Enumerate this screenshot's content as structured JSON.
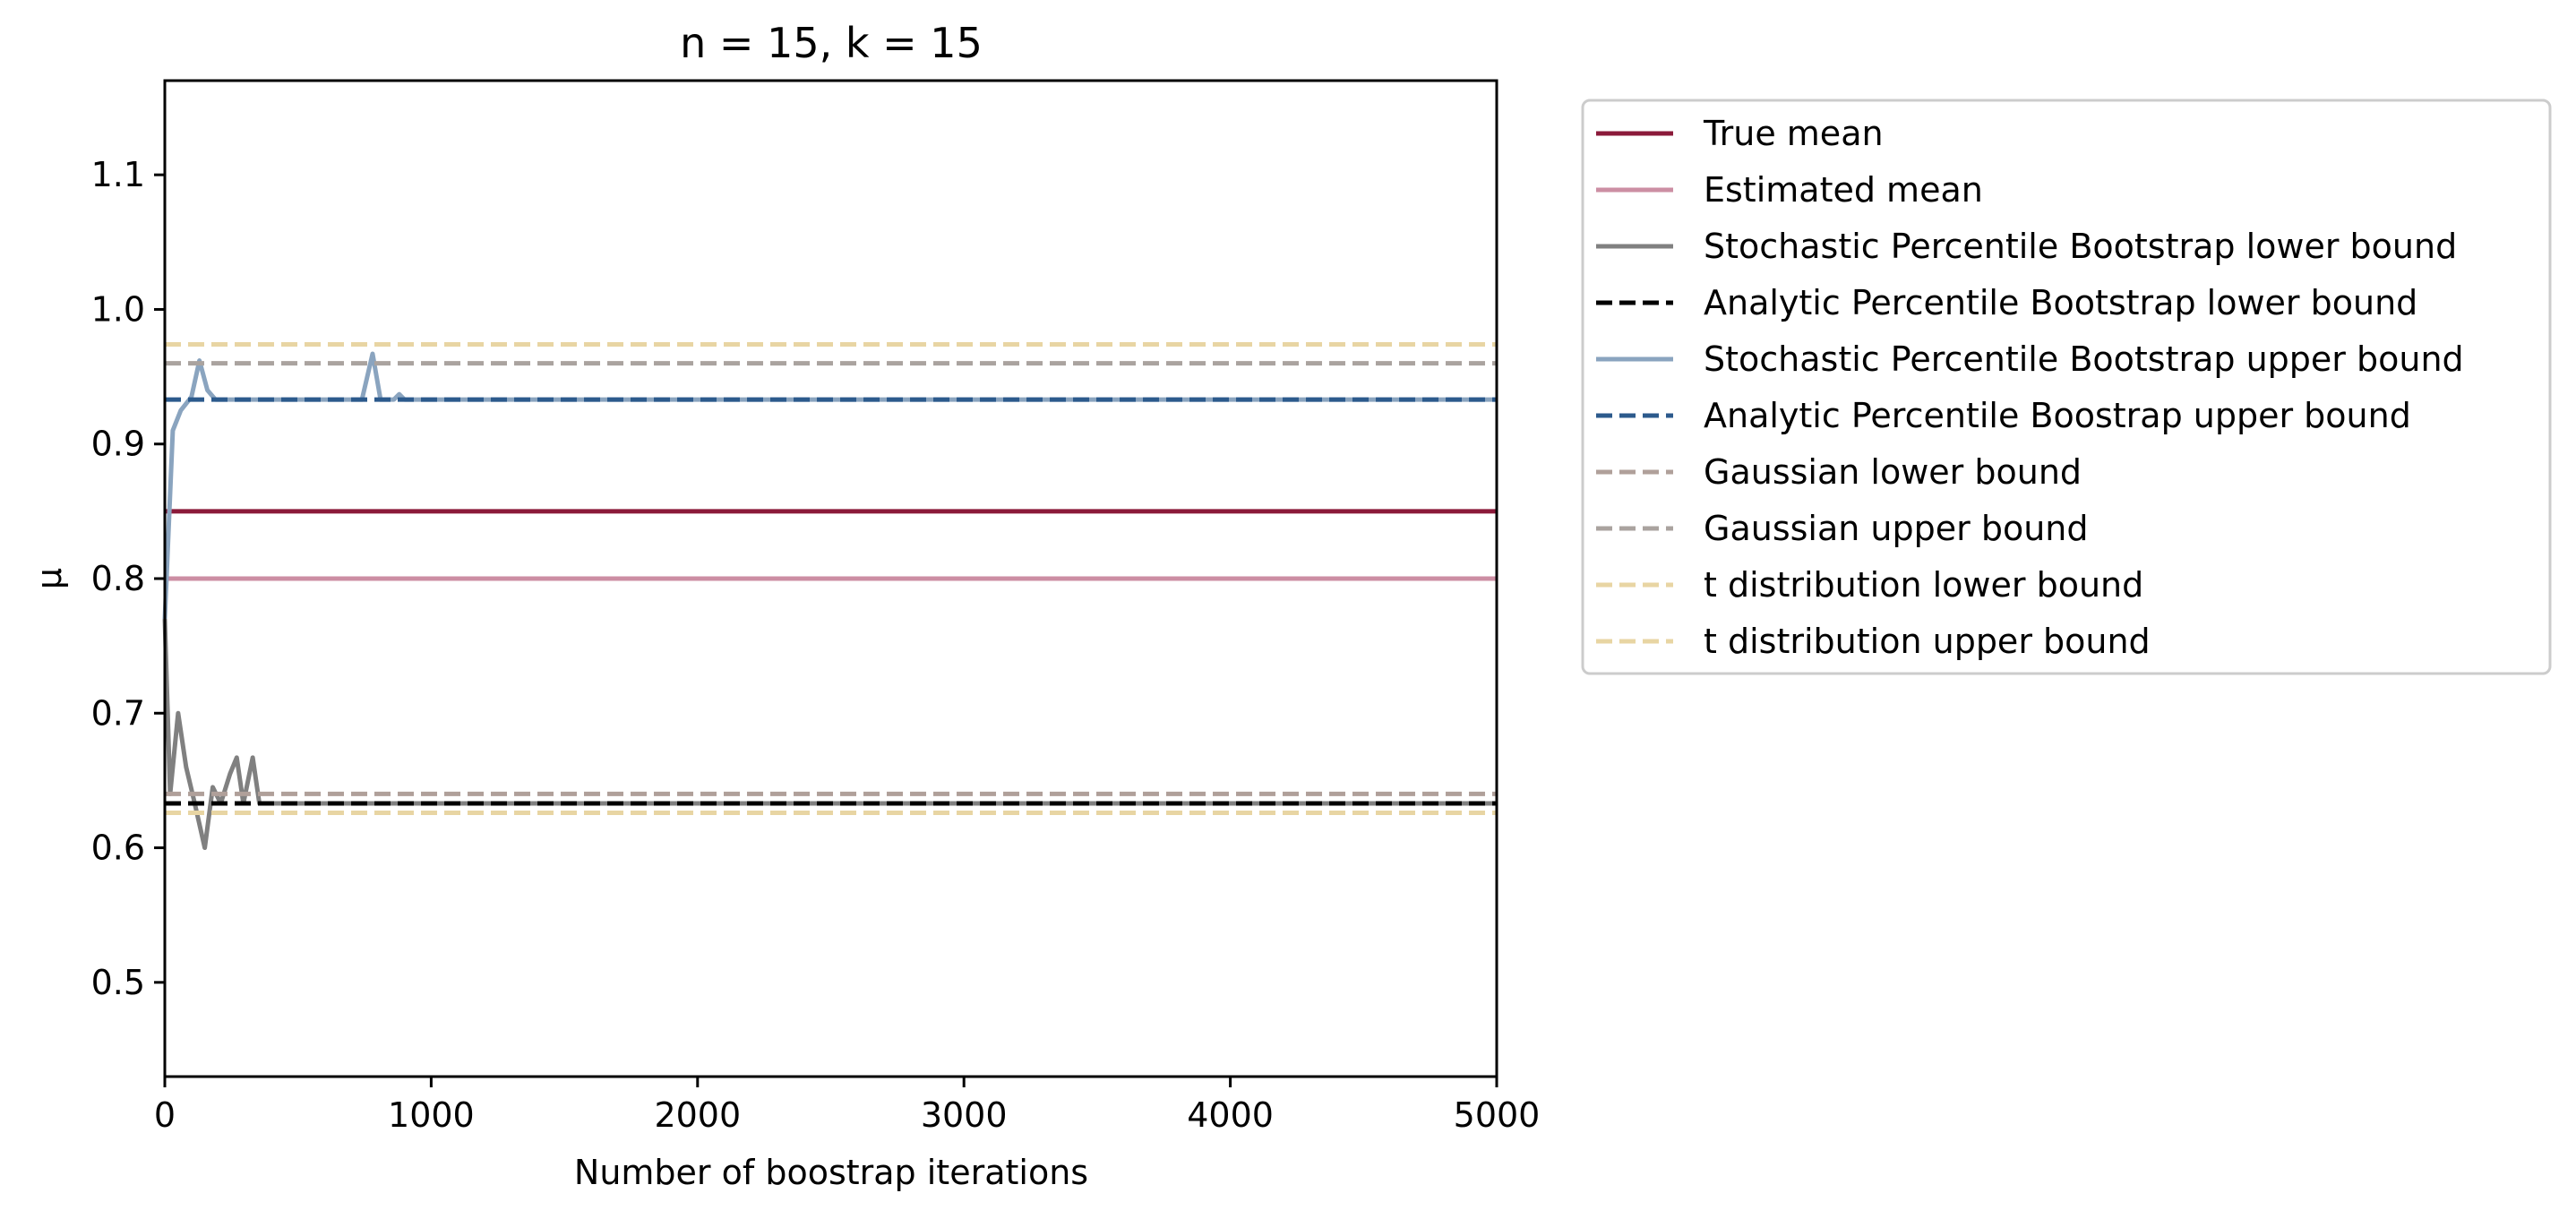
{
  "chart_data": {
    "type": "line",
    "title": "n = 15, k = 15",
    "xlabel": "Number of boostrap iterations",
    "ylabel": "μ",
    "xlim": [
      0,
      5000
    ],
    "ylim": [
      0.43,
      1.17
    ],
    "x_ticks": [
      0,
      1000,
      2000,
      3000,
      4000,
      5000
    ],
    "y_ticks": [
      0.5,
      0.6,
      0.7,
      0.8,
      0.9,
      1.0,
      1.1
    ],
    "grid": false,
    "legend_position": "outside-right",
    "series": [
      {
        "name": "True mean",
        "color": "#8b1a3a",
        "dash": "solid",
        "points": [
          [
            0,
            0.85
          ],
          [
            5000,
            0.85
          ]
        ]
      },
      {
        "name": "Estimated mean",
        "color": "#cc8ea3",
        "dash": "solid",
        "points": [
          [
            0,
            0.8
          ],
          [
            5000,
            0.8
          ]
        ]
      },
      {
        "name": "Stochastic Percentile Bootstrap lower bound",
        "color": "#808080",
        "dash": "solid",
        "points": [
          [
            0,
            0.77
          ],
          [
            20,
            0.64
          ],
          [
            50,
            0.7
          ],
          [
            80,
            0.66
          ],
          [
            110,
            0.635
          ],
          [
            150,
            0.6
          ],
          [
            180,
            0.645
          ],
          [
            210,
            0.633
          ],
          [
            245,
            0.655
          ],
          [
            270,
            0.667
          ],
          [
            295,
            0.633
          ],
          [
            330,
            0.667
          ],
          [
            355,
            0.633
          ],
          [
            5000,
            0.633
          ]
        ]
      },
      {
        "name": "Analytic Percentile Bootstrap lower bound",
        "color": "#000000",
        "dash": "dashed",
        "points": [
          [
            0,
            0.633
          ],
          [
            5000,
            0.633
          ]
        ]
      },
      {
        "name": "Stochastic Percentile Bootstrap upper bound",
        "color": "#8aa4bf",
        "dash": "solid",
        "points": [
          [
            0,
            0.77
          ],
          [
            30,
            0.91
          ],
          [
            60,
            0.925
          ],
          [
            100,
            0.935
          ],
          [
            130,
            0.962
          ],
          [
            160,
            0.94
          ],
          [
            190,
            0.933
          ],
          [
            740,
            0.933
          ],
          [
            780,
            0.967
          ],
          [
            810,
            0.933
          ],
          [
            860,
            0.933
          ],
          [
            880,
            0.937
          ],
          [
            900,
            0.933
          ],
          [
            5000,
            0.933
          ]
        ]
      },
      {
        "name": "Analytic Percentile Boostrap upper bound",
        "color": "#2c5a8c",
        "dash": "dashed",
        "points": [
          [
            0,
            0.933
          ],
          [
            5000,
            0.933
          ]
        ]
      },
      {
        "name": "Gaussian lower bound",
        "color": "#b0a09a",
        "dash": "dashed",
        "points": [
          [
            0,
            0.64
          ],
          [
            5000,
            0.64
          ]
        ]
      },
      {
        "name": "Gaussian upper bound",
        "color": "#aaa39f",
        "dash": "dashed",
        "points": [
          [
            0,
            0.96
          ],
          [
            5000,
            0.96
          ]
        ]
      },
      {
        "name": "t distribution lower bound",
        "color": "#e8d5a3",
        "dash": "dashed",
        "points": [
          [
            0,
            0.626
          ],
          [
            5000,
            0.626
          ]
        ]
      },
      {
        "name": "t distribution upper bound",
        "color": "#e8d5a3",
        "dash": "dashed",
        "points": [
          [
            0,
            0.974
          ],
          [
            5000,
            0.974
          ]
        ]
      }
    ]
  }
}
